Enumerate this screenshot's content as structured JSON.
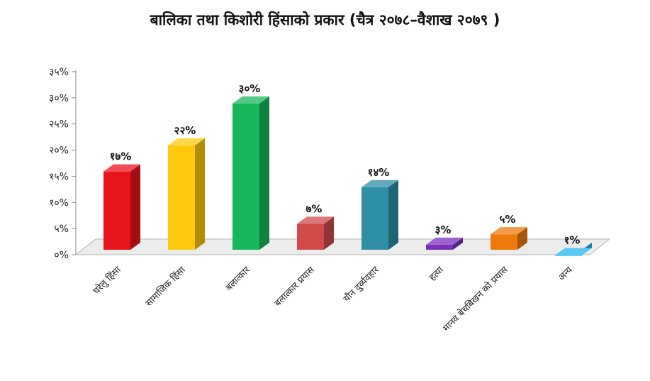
{
  "chart_data": {
    "type": "bar",
    "title": "बालिका तथा किशोरी हिंसाको प्रकार (चैत्र २०७८–वैशाख २०७९ )",
    "xlabel": "",
    "ylabel": "",
    "categories": [
      "घरेलु हिंसा",
      "सामाजिक हिंसा",
      "बलात्कार",
      "बलात्कार प्रयास",
      "यौन दुर्व्यवहार",
      "हत्या",
      "मानव बेचबिखन को प्रयास",
      "अन्य"
    ],
    "values": [
      17,
      22,
      30,
      7,
      14,
      3,
      5,
      1
    ],
    "data_labels": [
      "१७%",
      "२२%",
      "३०%",
      "७%",
      "१४%",
      "३%",
      "५%",
      "१%"
    ],
    "ylim": [
      0,
      35
    ],
    "yticks": [
      0,
      5,
      10,
      15,
      20,
      25,
      30,
      35
    ],
    "ytick_labels": [
      "०%",
      "५%",
      "१०%",
      "१५%",
      "२०%",
      "२५%",
      "३०%",
      "३५%"
    ],
    "colors": [
      "#e8141b",
      "#ffc90e",
      "#18b85a",
      "#d04a4a",
      "#2e8fa6",
      "#7b2fbe",
      "#ef7a0c",
      "#1fb6ec"
    ],
    "grid": false,
    "legend": "none",
    "style": "3d-bar"
  }
}
